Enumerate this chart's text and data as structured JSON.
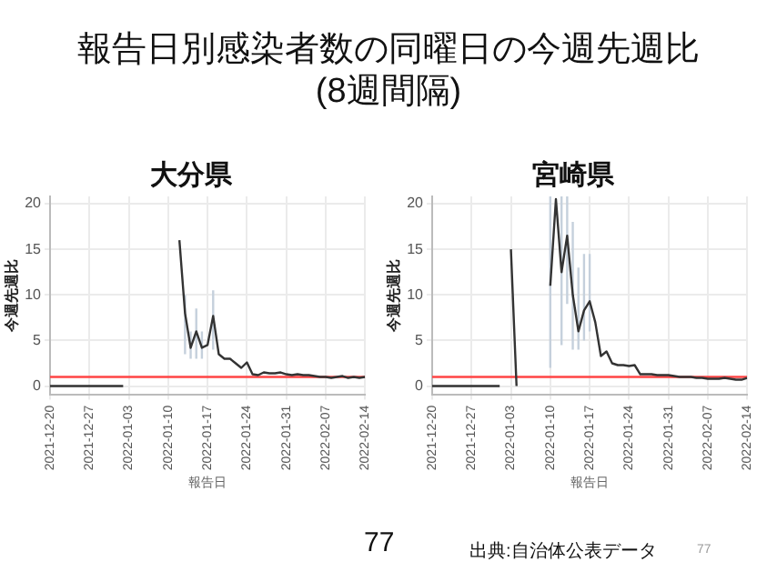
{
  "chart_data": [
    {
      "type": "line",
      "title": "大分県",
      "xlabel": "報告日",
      "ylabel": "今週先週比",
      "annotations": [
        "報告日別感染者数の同曜日の今週先週比",
        "(8週間隔)"
      ],
      "x": [
        "2021-12-20",
        "2021-12-21",
        "2021-12-22",
        "2021-12-23",
        "2021-12-24",
        "2021-12-25",
        "2021-12-26",
        "2021-12-27",
        "2021-12-28",
        "2021-12-29",
        "2021-12-30",
        "2021-12-31",
        "2022-01-01",
        "2022-01-02",
        "2022-01-03",
        "2022-01-04",
        "2022-01-05",
        "2022-01-06",
        "2022-01-07",
        "2022-01-08",
        "2022-01-09",
        "2022-01-10",
        "2022-01-11",
        "2022-01-12",
        "2022-01-13",
        "2022-01-14",
        "2022-01-15",
        "2022-01-16",
        "2022-01-17",
        "2022-01-18",
        "2022-01-19",
        "2022-01-20",
        "2022-01-21",
        "2022-01-22",
        "2022-01-23",
        "2022-01-24",
        "2022-01-25",
        "2022-01-26",
        "2022-01-27",
        "2022-01-28",
        "2022-01-29",
        "2022-01-30",
        "2022-01-31",
        "2022-02-01",
        "2022-02-02",
        "2022-02-03",
        "2022-02-04",
        "2022-02-05",
        "2022-02-06",
        "2022-02-07",
        "2022-02-08",
        "2022-02-09",
        "2022-02-10",
        "2022-02-11",
        "2022-02-12",
        "2022-02-13",
        "2022-02-14"
      ],
      "series": [
        {
          "color": "#333333",
          "values": [
            0,
            0,
            0,
            0,
            0,
            0,
            0,
            0,
            0,
            0,
            0,
            0,
            0,
            0,
            null,
            null,
            null,
            null,
            null,
            null,
            null,
            null,
            null,
            16,
            8,
            4.2,
            6,
            4.2,
            4.5,
            7.7,
            3.5,
            3,
            3,
            2.5,
            2,
            2.6,
            1.3,
            1.2,
            1.5,
            1.4,
            1.4,
            1.5,
            1.3,
            1.2,
            1.3,
            1.2,
            1.2,
            1.1,
            1,
            1,
            0.9,
            1,
            1.1,
            0.9,
            1,
            0.9,
            1
          ],
          "errors": [
            null,
            null,
            null,
            null,
            null,
            null,
            null,
            null,
            null,
            null,
            null,
            null,
            null,
            null,
            null,
            null,
            null,
            null,
            null,
            null,
            null,
            null,
            null,
            null,
            [
              3.5,
              10
            ],
            [
              3,
              6
            ],
            [
              3,
              8.5
            ],
            [
              3,
              6
            ],
            null,
            [
              4,
              10.5
            ],
            null,
            null,
            null,
            null,
            null,
            null,
            null,
            null,
            null,
            null,
            null,
            null,
            null,
            null,
            null,
            null,
            null,
            null,
            null,
            null,
            null,
            null,
            null,
            null,
            null,
            null,
            null
          ]
        }
      ],
      "xlim": [
        "2021-12-20",
        "2022-02-14"
      ],
      "xticks": [
        "2021-12-20",
        "2021-12-27",
        "2022-01-03",
        "2022-01-10",
        "2022-01-17",
        "2022-01-24",
        "2022-01-31",
        "2022-02-07",
        "2022-02-14"
      ],
      "ylim": [
        -0.9,
        20.8
      ],
      "yticks": [
        0,
        5,
        10,
        15,
        20
      ],
      "grid": true,
      "marker": "none",
      "ref_lines": [
        {
          "axis": "y",
          "value": 1,
          "color": "#ff4444"
        }
      ]
    },
    {
      "type": "line",
      "title": "宮崎県",
      "xlabel": "報告日",
      "ylabel": "今週先週比",
      "annotations": [
        "77",
        "出典:自治体公表データ",
        "77"
      ],
      "x": [
        "2021-12-20",
        "2021-12-21",
        "2021-12-22",
        "2021-12-23",
        "2021-12-24",
        "2021-12-25",
        "2021-12-26",
        "2021-12-27",
        "2021-12-28",
        "2021-12-29",
        "2021-12-30",
        "2021-12-31",
        "2022-01-01",
        "2022-01-02",
        "2022-01-03",
        "2022-01-04",
        "2022-01-05",
        "2022-01-06",
        "2022-01-07",
        "2022-01-08",
        "2022-01-09",
        "2022-01-10",
        "2022-01-11",
        "2022-01-12",
        "2022-01-13",
        "2022-01-14",
        "2022-01-15",
        "2022-01-16",
        "2022-01-17",
        "2022-01-18",
        "2022-01-19",
        "2022-01-20",
        "2022-01-21",
        "2022-01-22",
        "2022-01-23",
        "2022-01-24",
        "2022-01-25",
        "2022-01-26",
        "2022-01-27",
        "2022-01-28",
        "2022-01-29",
        "2022-01-30",
        "2022-01-31",
        "2022-02-01",
        "2022-02-02",
        "2022-02-03",
        "2022-02-04",
        "2022-02-05",
        "2022-02-06",
        "2022-02-07",
        "2022-02-08",
        "2022-02-09",
        "2022-02-10",
        "2022-02-11",
        "2022-02-12",
        "2022-02-13",
        "2022-02-14"
      ],
      "series": [
        {
          "color": "#333333",
          "values": [
            0,
            0,
            0,
            0,
            0,
            0,
            0,
            0,
            0,
            0,
            0,
            0,
            0,
            null,
            15,
            0,
            null,
            null,
            null,
            null,
            null,
            11,
            20.5,
            12.5,
            16.5,
            10,
            6,
            8.3,
            9.3,
            7,
            3.3,
            3.8,
            2.5,
            2.3,
            2.3,
            2.2,
            2.3,
            1.3,
            1.3,
            1.3,
            1.2,
            1.2,
            1.2,
            1.1,
            1,
            1,
            1,
            0.9,
            0.9,
            0.8,
            0.8,
            0.8,
            0.9,
            0.8,
            0.7,
            0.7,
            0.9
          ],
          "errors": [
            null,
            null,
            null,
            null,
            null,
            null,
            null,
            null,
            null,
            null,
            null,
            null,
            null,
            null,
            null,
            null,
            null,
            null,
            null,
            null,
            null,
            [
              2,
              20.8
            ],
            null,
            [
              4.5,
              20.8
            ],
            [
              9,
              20.8
            ],
            [
              4,
              18
            ],
            [
              4,
              13
            ],
            [
              5,
              14.5
            ],
            [
              6,
              14.5
            ],
            null,
            null,
            null,
            null,
            null,
            null,
            null,
            null,
            null,
            null,
            null,
            null,
            null,
            null,
            null,
            null,
            null,
            null,
            null,
            null,
            null,
            null,
            null,
            null,
            null,
            null,
            null,
            null
          ]
        }
      ],
      "xlim": [
        "2021-12-20",
        "2022-02-14"
      ],
      "xticks": [
        "2021-12-20",
        "2021-12-27",
        "2022-01-03",
        "2022-01-10",
        "2022-01-17",
        "2022-01-24",
        "2022-01-31",
        "2022-02-07",
        "2022-02-14"
      ],
      "ylim": [
        -0.9,
        20.8
      ],
      "yticks": [
        0,
        5,
        10,
        15,
        20
      ],
      "grid": true,
      "marker": "none",
      "ref_lines": [
        {
          "axis": "y",
          "value": 1,
          "color": "#ff4444"
        }
      ]
    }
  ]
}
